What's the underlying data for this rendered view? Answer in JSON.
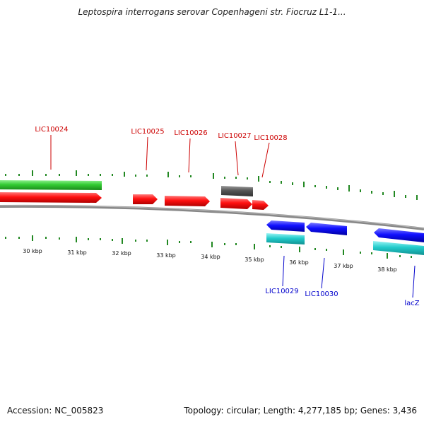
{
  "title": "Leptospira interrogans serovar Copenhageni str. Fiocruz L1-1...",
  "footer": {
    "accession": "Accession: NC_005823",
    "summary": "Topology: circular; Length: 4,277,185 bp; Genes: 3,436"
  },
  "colors": {
    "forward_label": "#cc0000",
    "reverse_label": "#0000cc",
    "forward_gene": "#ff0000",
    "reverse_gene": "#0000ff",
    "rna_forward": "#33cc33",
    "rna_reverse": "#22cccc",
    "other": "#555555",
    "backbone": "#888888",
    "ticks": "#228822"
  },
  "scale": {
    "ticks": [
      "30 kbp",
      "31 kbp",
      "32 kbp",
      "33 kbp",
      "34 kbp",
      "35 kbp",
      "36 kbp",
      "37 kbp",
      "38 kbp"
    ]
  },
  "genes_forward": [
    "LIC10024",
    "LIC10025",
    "LIC10026",
    "LIC10027",
    "LIC10028"
  ],
  "genes_reverse": [
    "LIC10029",
    "LIC10030",
    "lacZ"
  ]
}
